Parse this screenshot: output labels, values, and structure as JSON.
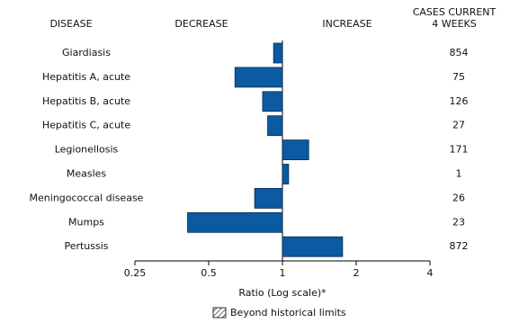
{
  "chart_data": {
    "type": "bar",
    "orientation": "horizontal",
    "xscale": "log",
    "headers": {
      "disease": "DISEASE",
      "decrease": "DECREASE",
      "increase": "INCREASE",
      "cases": [
        "CASES CURRENT",
        "4 WEEKS"
      ]
    },
    "categories": [
      "Giardiasis",
      "Hepatitis A, acute",
      "Hepatitis B, acute",
      "Hepatitis C, acute",
      "Legionellosis",
      "Measles",
      "Meningococcal disease",
      "Mumps",
      "Pertussis"
    ],
    "values": [
      0.92,
      0.64,
      0.83,
      0.87,
      1.28,
      1.06,
      0.77,
      0.41,
      1.76
    ],
    "cases": [
      854,
      75,
      126,
      27,
      171,
      1,
      26,
      23,
      872
    ],
    "color": "#0b5aa2",
    "xlim": [
      0.25,
      4
    ],
    "xticks": [
      0.25,
      0.5,
      1,
      2,
      4
    ],
    "xlabel": "Ratio (Log scale)*",
    "legend": "Beyond historical limits"
  }
}
